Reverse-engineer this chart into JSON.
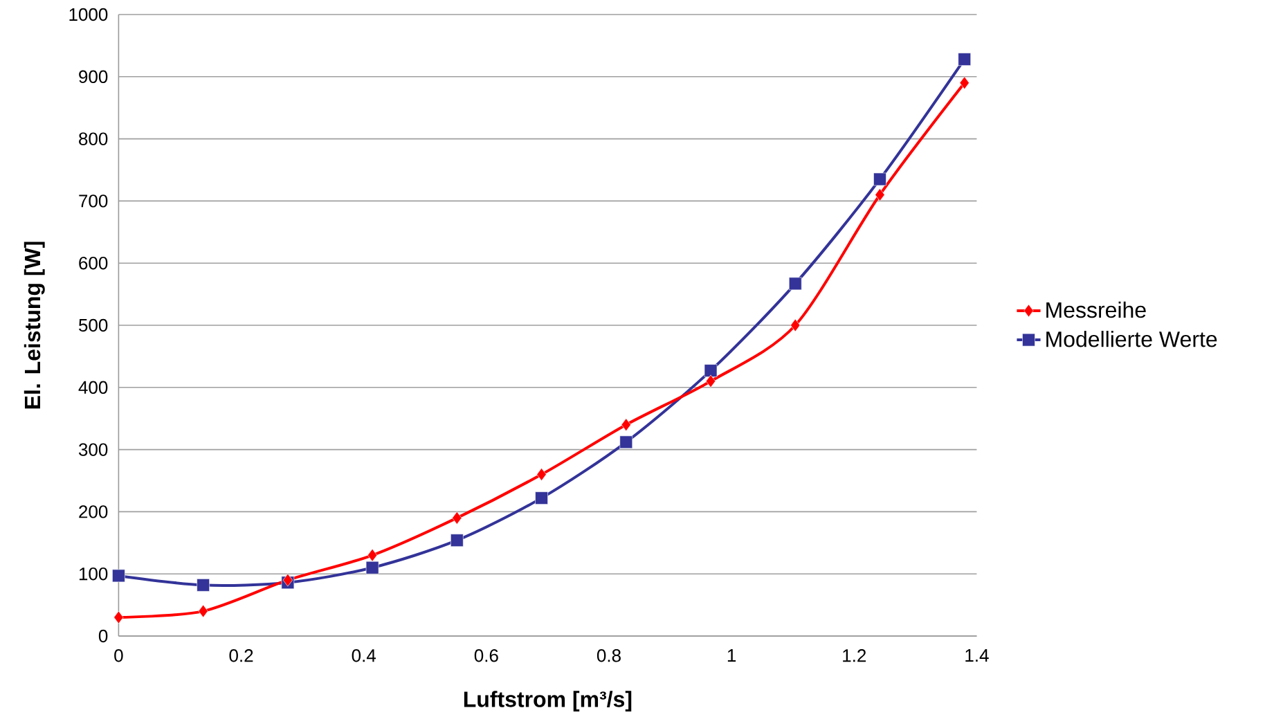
{
  "chart_data": {
    "type": "line",
    "xlabel": "Luftstrom [m³/s]",
    "ylabel": "El. Leistung [W]",
    "x": [
      0,
      0.138,
      0.276,
      0.414,
      0.552,
      0.69,
      0.828,
      0.966,
      1.104,
      1.242,
      1.38
    ],
    "series": [
      {
        "name": "Messreihe",
        "color": "#ff0000",
        "marker": "diamond",
        "values": [
          30,
          40,
          90,
          130,
          190,
          260,
          340,
          410,
          500,
          710,
          890
        ]
      },
      {
        "name": "Modellierte Werte",
        "color": "#333399",
        "marker": "square",
        "values": [
          97,
          82,
          86,
          110,
          154,
          222,
          312,
          427,
          567,
          735,
          928
        ]
      }
    ],
    "xlim": [
      0,
      1.4
    ],
    "xticks": [
      0,
      0.2,
      0.4,
      0.6,
      0.8,
      1,
      1.2,
      1.4
    ],
    "ylim": [
      0,
      1000
    ],
    "yticks": [
      0,
      100,
      200,
      300,
      400,
      500,
      600,
      700,
      800,
      900,
      1000
    ],
    "grid": "y",
    "legend": "right"
  }
}
